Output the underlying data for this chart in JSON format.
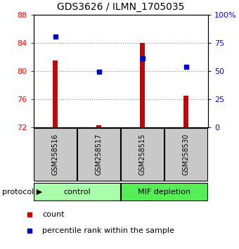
{
  "title": "GDS3626 / ILMN_1705035",
  "samples": [
    "GSM258516",
    "GSM258517",
    "GSM258515",
    "GSM258530"
  ],
  "count_values": [
    81.5,
    72.3,
    84.0,
    76.5
  ],
  "percentile_values": [
    81.0,
    49.0,
    61.0,
    54.0
  ],
  "ylim_left": [
    72,
    88
  ],
  "ylim_right": [
    0,
    100
  ],
  "yticks_left": [
    72,
    76,
    80,
    84,
    88
  ],
  "yticks_right": [
    0,
    25,
    50,
    75,
    100
  ],
  "ytick_labels_right": [
    "0",
    "25",
    "50",
    "75",
    "100%"
  ],
  "bar_color": "#cc0000",
  "marker_color": "#0000cc",
  "bar_bottom": 72,
  "bar_width": 0.12,
  "groups": [
    {
      "label": "control",
      "samples": [
        "GSM258516",
        "GSM258517"
      ],
      "color": "#aaffaa"
    },
    {
      "label": "MIF depletion",
      "samples": [
        "GSM258515",
        "GSM258530"
      ],
      "color": "#55ee55"
    }
  ],
  "group_label_prefix": "protocol",
  "legend_count_label": "count",
  "legend_percentile_label": "percentile rank within the sample",
  "sample_box_color": "#c8c8c8",
  "dotted_line_color": "#888888",
  "background_color": "#ffffff"
}
